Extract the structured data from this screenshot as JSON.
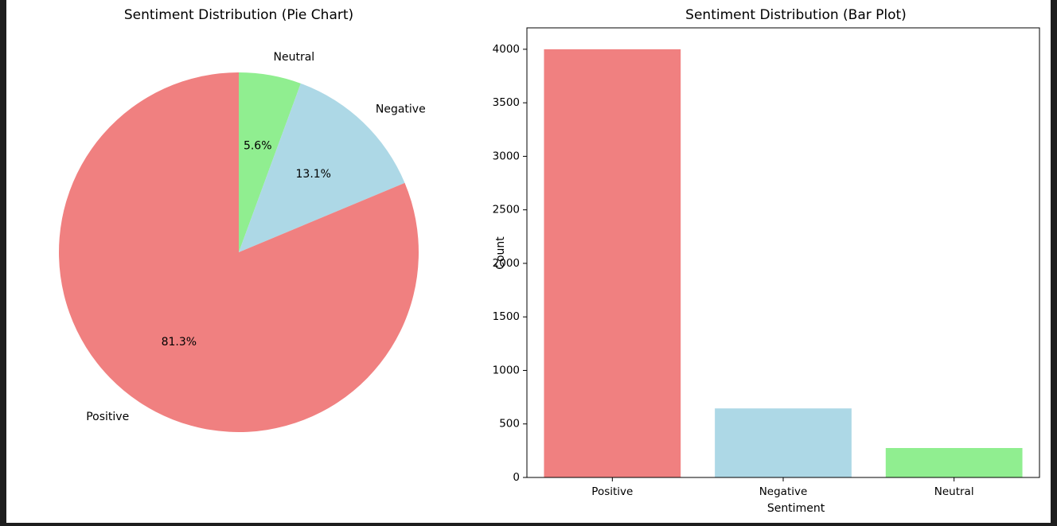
{
  "chart_data": [
    {
      "type": "pie",
      "title": "Sentiment Distribution (Pie Chart)",
      "categories": [
        "Positive",
        "Negative",
        "Neutral"
      ],
      "values": [
        81.3,
        13.1,
        5.6
      ],
      "value_labels": [
        "81.3%",
        "13.1%",
        "5.6%"
      ],
      "colors": [
        "#f08080",
        "#add8e6",
        "#90ee90"
      ],
      "start_angle": "top",
      "direction": "clockwise starting with Neutral"
    },
    {
      "type": "bar",
      "title": "Sentiment Distribution (Bar Plot)",
      "xlabel": "Sentiment",
      "ylabel": "Count",
      "categories": [
        "Positive",
        "Negative",
        "Neutral"
      ],
      "values": [
        4000,
        645,
        275
      ],
      "colors": [
        "#f08080",
        "#add8e6",
        "#90ee90"
      ],
      "ylim": [
        0,
        4200
      ],
      "yticks": [
        0,
        500,
        1000,
        1500,
        2000,
        2500,
        3000,
        3500,
        4000
      ],
      "grid": false
    }
  ]
}
